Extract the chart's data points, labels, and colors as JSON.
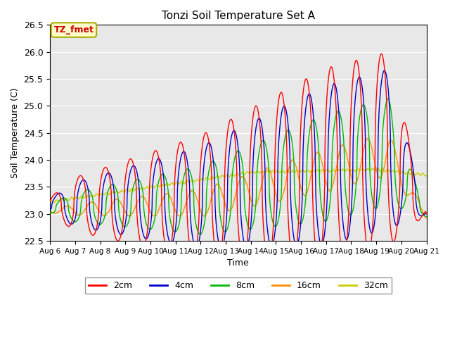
{
  "title": "Tonzi Soil Temperature Set A",
  "xlabel": "Time",
  "ylabel": "Soil Temperature (C)",
  "annotation": "TZ_fmet",
  "ylim": [
    22.5,
    26.5
  ],
  "legend_labels": [
    "2cm",
    "4cm",
    "8cm",
    "16cm",
    "32cm"
  ],
  "colors": {
    "2cm": "#ff0000",
    "4cm": "#0000cc",
    "8cm": "#00bb00",
    "16cm": "#ff8c00",
    "32cm": "#cccc00"
  },
  "bg_color": "#e8e8e8",
  "xticklabels": [
    "Aug 6",
    "Aug 7",
    "Aug 8",
    "Aug 9",
    "Aug 10",
    "Aug 11",
    "Aug 12",
    "Aug 13",
    "Aug 14",
    "Aug 15",
    "Aug 16",
    "Aug 17",
    "Aug 18",
    "Aug 19",
    "Aug 20",
    "Aug 21"
  ],
  "annotation_bbox": {
    "facecolor": "#ffffcc",
    "edgecolor": "#aaaa00",
    "textcolor": "#cc0000"
  }
}
